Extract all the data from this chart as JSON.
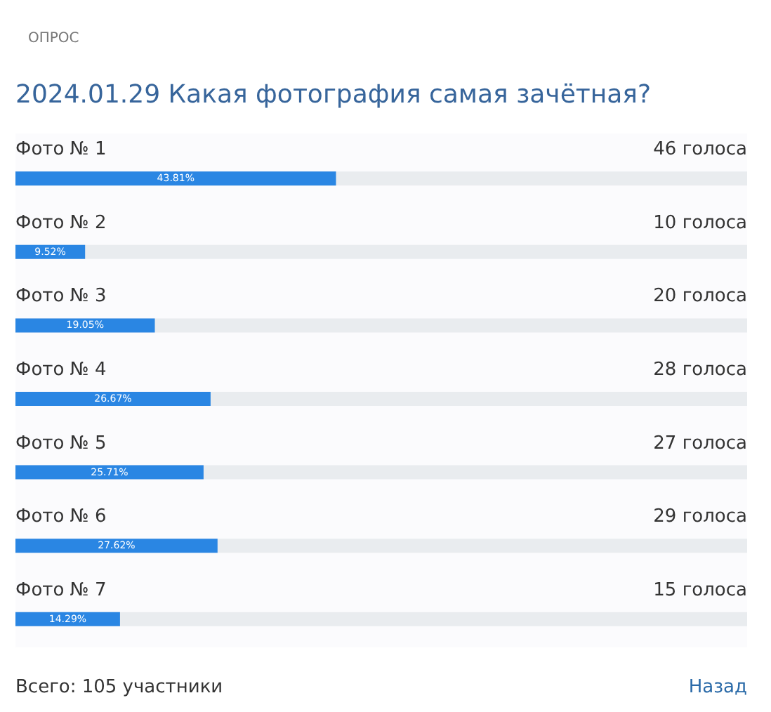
{
  "chart_data": {
    "type": "bar",
    "orientation": "horizontal",
    "subtitle": "ОПРОС",
    "title": "2024.01.29 Какая фотография самая зачётная?",
    "categories": [
      "Фото № 1",
      "Фото № 2",
      "Фото № 3",
      "Фото № 4",
      "Фото № 5",
      "Фото № 6",
      "Фото № 7"
    ],
    "values": [
      43.81,
      9.52,
      19.05,
      26.67,
      25.71,
      27.62,
      14.29
    ],
    "value_labels": [
      "43.81%",
      "9.52%",
      "19.05%",
      "26.67%",
      "25.71%",
      "27.62%",
      "14.29%"
    ],
    "color": "#2a86e3",
    "xlim": [
      0,
      100
    ],
    "annotations": [
      "46 голоса",
      "10 голоса",
      "20 голоса",
      "28 голоса",
      "27 голоса",
      "29 голоса",
      "15 голоса",
      "Всего: 105 участники",
      "Назад"
    ]
  }
}
